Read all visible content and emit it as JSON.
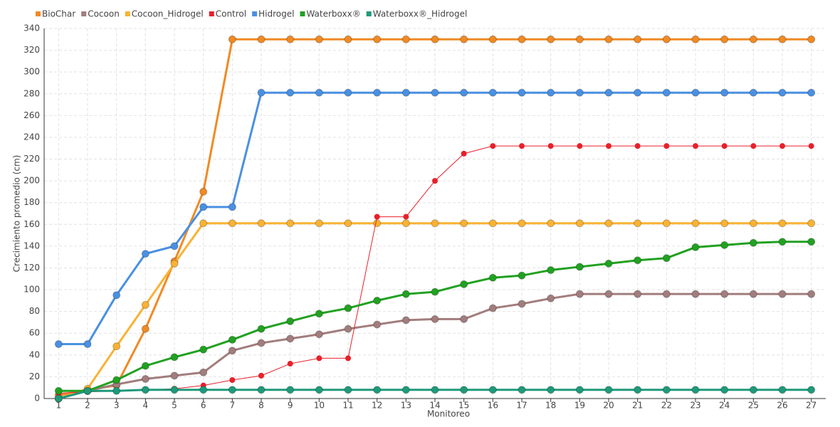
{
  "chart_data": {
    "type": "line",
    "x_label": "Monitoreo",
    "y_label": "Crecimiento promedio (cm)",
    "categories": [
      "1",
      "2",
      "3",
      "4",
      "5",
      "6",
      "7",
      "8",
      "9",
      "10",
      "11",
      "12",
      "13",
      "14",
      "15",
      "16",
      "17",
      "18",
      "19",
      "20",
      "21",
      "22",
      "23",
      "24",
      "25",
      "26",
      "27"
    ],
    "ylim": [
      0,
      340
    ],
    "yticks": [
      0,
      20,
      40,
      60,
      80,
      100,
      120,
      140,
      160,
      180,
      200,
      220,
      240,
      260,
      280,
      300,
      320,
      340
    ],
    "grid": true,
    "legend": "top-left",
    "series": [
      {
        "name": "BioChar",
        "color": "#f08a24",
        "line_width": 3,
        "values": [
          3,
          8,
          12,
          64,
          126,
          190,
          330,
          330,
          330,
          330,
          330,
          330,
          330,
          330,
          330,
          330,
          330,
          330,
          330,
          330,
          330,
          330,
          330,
          330,
          330,
          330,
          330
        ]
      },
      {
        "name": "Cocoon",
        "color": "#a27d7d",
        "line_width": 3,
        "values": [
          0,
          7,
          13,
          18,
          21,
          24,
          44,
          51,
          55,
          59,
          64,
          68,
          72,
          73,
          73,
          83,
          87,
          92,
          96,
          96,
          96,
          96,
          96,
          96,
          96,
          96,
          96
        ]
      },
      {
        "name": "Cocoon_Hidrogel",
        "color": "#f9b233",
        "line_width": 3,
        "values": [
          0,
          9,
          48,
          86,
          124,
          161,
          161,
          161,
          161,
          161,
          161,
          161,
          161,
          161,
          161,
          161,
          161,
          161,
          161,
          161,
          161,
          161,
          161,
          161,
          161,
          161,
          161
        ]
      },
      {
        "name": "Control",
        "color": "#e8202a",
        "line_width": 1,
        "values": [
          5,
          6,
          7,
          8,
          9,
          12,
          17,
          21,
          32,
          37,
          37,
          167,
          167,
          200,
          225,
          232,
          232,
          232,
          232,
          232,
          232,
          232,
          232,
          232,
          232,
          232,
          232
        ]
      },
      {
        "name": "Hidrogel",
        "color": "#4a90e2",
        "line_width": 3,
        "values": [
          50,
          50,
          95,
          133,
          140,
          176,
          176,
          281,
          281,
          281,
          281,
          281,
          281,
          281,
          281,
          281,
          281,
          281,
          281,
          281,
          281,
          281,
          281,
          281,
          281,
          281,
          281
        ]
      },
      {
        "name": "Waterboxx®",
        "color": "#21a121",
        "line_width": 3,
        "values": [
          7,
          7,
          17,
          30,
          38,
          45,
          54,
          64,
          71,
          78,
          83,
          90,
          96,
          98,
          105,
          111,
          113,
          118,
          121,
          124,
          127,
          129,
          139,
          141,
          143,
          144,
          144
        ]
      },
      {
        "name": "Waterboxx®_Hidrogel",
        "color": "#1e9a7a",
        "line_width": 3,
        "values": [
          0,
          7,
          7,
          8,
          8,
          8,
          8,
          8,
          8,
          8,
          8,
          8,
          8,
          8,
          8,
          8,
          8,
          8,
          8,
          8,
          8,
          8,
          8,
          8,
          8,
          8,
          8
        ]
      }
    ]
  }
}
